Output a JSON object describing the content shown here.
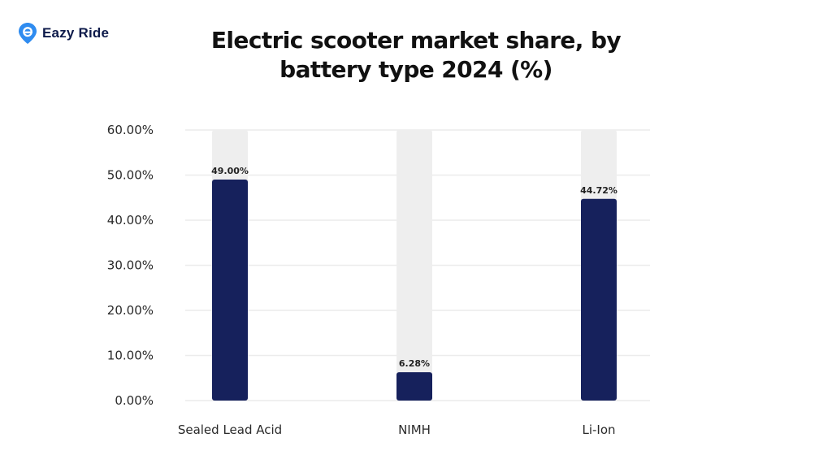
{
  "brand": {
    "name": "Eazy Ride",
    "logo_icon": "location-pin-e-icon",
    "color": "#2f8cf0"
  },
  "chart_data": {
    "type": "bar",
    "title": "Electric scooter market share, by battery type 2024 (%)",
    "xlabel": "",
    "ylabel": "",
    "categories": [
      "Sealed Lead Acid",
      "NIMH",
      "Li-Ion"
    ],
    "values": [
      49.0,
      6.28,
      44.72
    ],
    "data_labels": [
      "49.00%",
      "6.28%",
      "44.72%"
    ],
    "ylim": [
      0,
      60
    ],
    "yticks": [
      0,
      10,
      20,
      30,
      40,
      50,
      60
    ],
    "ytick_labels": [
      "0.00%",
      "10.00%",
      "20.00%",
      "30.00%",
      "40.00%",
      "50.00%",
      "60.00%"
    ],
    "grid": true,
    "legend": "none",
    "bar_color": "#16215c",
    "track_color": "#eeeeee",
    "grid_color": "#ececec"
  }
}
